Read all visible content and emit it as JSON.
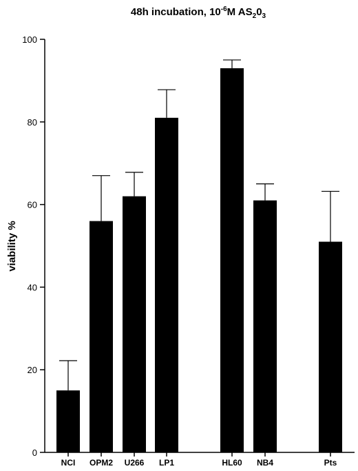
{
  "chart_data": {
    "type": "bar",
    "title": {
      "part1": "48h incubation, 10",
      "sup": "-6",
      "part2": "M AS",
      "sub1": "2",
      "part3": "0",
      "sub2": "3"
    },
    "xlabel": "",
    "ylabel": "viability %",
    "ylim": [
      0,
      100
    ],
    "yticks": [
      "0",
      "20",
      "40",
      "60",
      "80",
      "100"
    ],
    "categories": [
      "NCI",
      "OPM2",
      "U266",
      "LP1",
      "HL60",
      "NB4",
      "Pts"
    ],
    "values": [
      15,
      56,
      62,
      81,
      93,
      61,
      51
    ],
    "error_upper": [
      22.2,
      67,
      67.8,
      87.8,
      95,
      65,
      63.2
    ],
    "bar_color": "#000000",
    "grid": false,
    "legend": "none"
  }
}
